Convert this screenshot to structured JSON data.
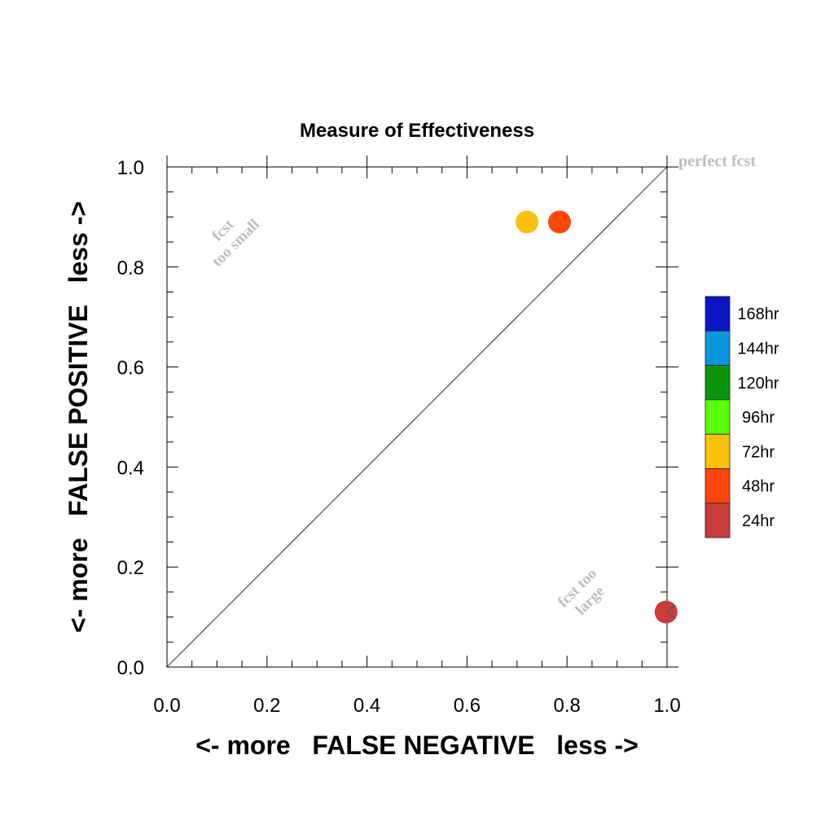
{
  "chart_data": {
    "type": "scatter",
    "title": "Measure of Effectiveness",
    "xlabel": "<- more   FALSE NEGATIVE   less ->",
    "ylabel": "<- more   FALSE POSITIVE   less ->",
    "xlim": [
      0,
      1
    ],
    "ylim": [
      0,
      1
    ],
    "x_ticks": [
      "0.0",
      "0.2",
      "0.4",
      "0.6",
      "0.8",
      "1.0"
    ],
    "y_ticks": [
      "0.0",
      "0.2",
      "0.4",
      "0.6",
      "0.8",
      "1.0"
    ],
    "grid": false,
    "diagonal_reference": true,
    "annotations": {
      "perfect": "perfect fcst",
      "too_small_1": "fcst",
      "too_small_2": "too small",
      "too_large_1": "fcst too",
      "too_large_2": "large"
    },
    "legend_position": "right",
    "legend": [
      {
        "label": "168hr",
        "color": "#0a14c0"
      },
      {
        "label": "144hr",
        "color": "#0a96dc"
      },
      {
        "label": "120hr",
        "color": "#0a960a"
      },
      {
        "label": "96hr",
        "color": "#5aff0a"
      },
      {
        "label": "72hr",
        "color": "#fac00a"
      },
      {
        "label": "48hr",
        "color": "#ff460a"
      },
      {
        "label": "24hr",
        "color": "#c83c3c"
      }
    ],
    "points": [
      {
        "series": "72hr",
        "x": 0.72,
        "y": 0.89,
        "color": "#fac00a"
      },
      {
        "series": "48hr",
        "x": 0.785,
        "y": 0.89,
        "color": "#ff460a"
      },
      {
        "series": "24hr",
        "x": 0.998,
        "y": 0.11,
        "color": "#c83c3c",
        "offscale_marker": true
      }
    ]
  }
}
